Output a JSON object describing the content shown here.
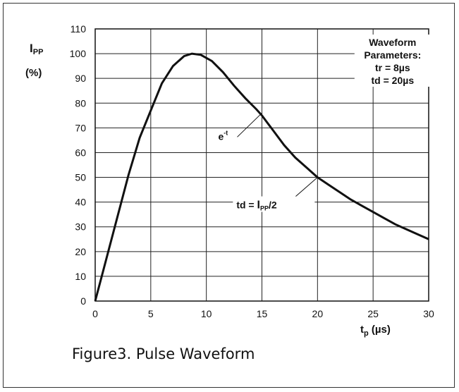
{
  "chart_data": {
    "type": "line",
    "xlabel": "t",
    "xlabel_sub": "p",
    "xlabel_unit": " (µs)",
    "ylabel_main": "I",
    "ylabel_sub": "PP",
    "ylabel_unit": "(%)",
    "xlim": [
      0,
      30
    ],
    "ylim": [
      0,
      110
    ],
    "x_ticks": [
      0,
      5,
      10,
      15,
      20,
      25,
      30
    ],
    "y_ticks": [
      0,
      10,
      20,
      30,
      40,
      50,
      60,
      70,
      80,
      90,
      100,
      110
    ],
    "grid": true,
    "series": [
      {
        "x": [
          0,
          1,
          2,
          3,
          4,
          5,
          6,
          7,
          8,
          8.7,
          9.5,
          10.5,
          11.5,
          12.5,
          13.5,
          14.5,
          15,
          16,
          17,
          18,
          19,
          20,
          21,
          22,
          23,
          24,
          25,
          26,
          27,
          28,
          29,
          30
        ],
        "y": [
          0,
          17,
          34,
          51,
          66,
          77,
          88,
          95,
          99,
          100,
          99.5,
          97,
          92.5,
          87,
          82,
          77.5,
          75,
          69,
          63,
          58,
          54,
          50,
          47,
          44,
          41,
          38.5,
          36,
          33.5,
          31,
          29,
          27,
          25
        ]
      }
    ],
    "legend_box": {
      "lines": [
        "Waveform",
        "Parameters:",
        "tr = 8µs",
        "td = 20µs"
      ]
    },
    "annotations": [
      {
        "text": "e",
        "sup": "-t",
        "x": 15,
        "y": 76
      },
      {
        "text_pre": "td = ",
        "text_main": "I",
        "text_sub": "PP",
        "text_post": "/2",
        "x": 20,
        "y": 50
      }
    ]
  },
  "caption": "Figure3. Pulse Waveform"
}
